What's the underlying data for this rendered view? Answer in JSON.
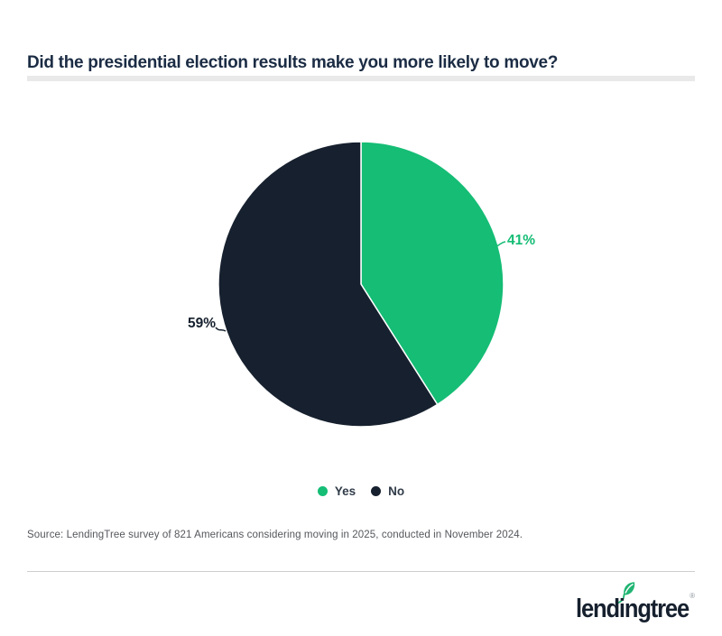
{
  "chart_data": {
    "type": "pie",
    "title": "Did the presidential election results make you more likely to move?",
    "categories": [
      "Yes",
      "No"
    ],
    "values": [
      41,
      59
    ],
    "labels": [
      "41%",
      "59%"
    ],
    "colors": [
      "#15bd75",
      "#16202e"
    ],
    "start_angle_deg": -90,
    "direction": "clockwise",
    "legend_position": "bottom",
    "label_style": "outside-with-leader-line"
  },
  "source": "Source: LendingTree survey of 821 Americans considering moving in 2025, conducted in November 2024.",
  "brand": {
    "wordmark": "lendingtree",
    "registered_mark": "®",
    "logo_green": "#21b573",
    "navy": "#16202e"
  }
}
